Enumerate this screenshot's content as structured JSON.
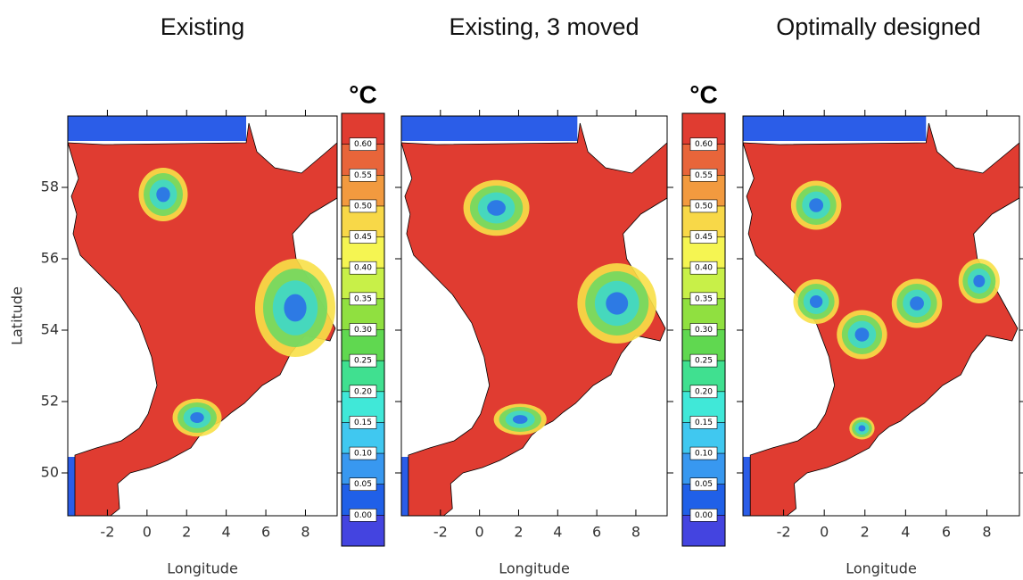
{
  "chart_data": [
    {
      "type": "map",
      "title": "Existing",
      "xlabel": "Longitude",
      "ylabel": "Latitude",
      "xlim": [
        -4,
        9.6
      ],
      "ylim": [
        48.8,
        60
      ],
      "xticks": [
        -2,
        0,
        2,
        4,
        6,
        8
      ],
      "yticks": [
        50,
        52,
        54,
        56,
        58
      ],
      "colorbar": {
        "title": "°C",
        "lim": [
          -0.05,
          0.65
        ],
        "ticks": [
          {
            "value": 0.6,
            "label": "0.60"
          },
          {
            "value": 0.55,
            "label": "0.55"
          },
          {
            "value": 0.5,
            "label": "0.50"
          },
          {
            "value": 0.45,
            "label": "0.45"
          },
          {
            "value": 0.4,
            "label": "0.40"
          },
          {
            "value": 0.35,
            "label": "0.35"
          },
          {
            "value": 0.3,
            "label": "0.30"
          },
          {
            "value": 0.25,
            "label": "0.25"
          },
          {
            "value": 0.2,
            "label": "0.20"
          },
          {
            "value": 0.15,
            "label": "0.15"
          },
          {
            "value": 0.1,
            "label": "0.10"
          },
          {
            "value": 0.05,
            "label": "0.05"
          },
          {
            "value": 0,
            "label": "0.00"
          }
        ],
        "colors": [
          "#e03c31",
          "#e8653a",
          "#f29a3f",
          "#f8d848",
          "#f5f552",
          "#c8f048",
          "#90e040",
          "#60d850",
          "#40e090",
          "#40e8d8",
          "#40c8f0",
          "#3898f0",
          "#2060e8",
          "#4444e0"
        ]
      }
    },
    {
      "type": "map",
      "title": "Existing, 3 moved",
      "xlabel": "Longitude",
      "xlim": [
        -4,
        9.6
      ],
      "ylim": [
        48.8,
        60
      ],
      "xticks": [
        -2,
        0,
        2,
        4,
        6,
        8
      ],
      "yticks": [
        50,
        52,
        54,
        56,
        58
      ],
      "colorbar": {
        "title": "°C",
        "lim": [
          -0.05,
          0.65
        ],
        "ticks": [
          {
            "value": 0.6,
            "label": "0.60"
          },
          {
            "value": 0.55,
            "label": "0.55"
          },
          {
            "value": 0.5,
            "label": "0.50"
          },
          {
            "value": 0.45,
            "label": "0.45"
          },
          {
            "value": 0.4,
            "label": "0.40"
          },
          {
            "value": 0.35,
            "label": "0.35"
          },
          {
            "value": 0.3,
            "label": "0.30"
          },
          {
            "value": 0.25,
            "label": "0.25"
          },
          {
            "value": 0.2,
            "label": "0.20"
          },
          {
            "value": 0.15,
            "label": "0.15"
          },
          {
            "value": 0.1,
            "label": "0.10"
          },
          {
            "value": 0.05,
            "label": "0.05"
          },
          {
            "value": 0,
            "label": "0.00"
          }
        ],
        "colors": [
          "#e03c31",
          "#e8653a",
          "#f29a3f",
          "#f8d848",
          "#f5f552",
          "#c8f048",
          "#90e040",
          "#60d850",
          "#40e090",
          "#40e8d8",
          "#40c8f0",
          "#3898f0",
          "#2060e8",
          "#4444e0"
        ]
      }
    },
    {
      "type": "map",
      "title": "Optimally designed",
      "xlabel": "Longitude",
      "xlim": [
        -4,
        9.6
      ],
      "ylim": [
        48.8,
        60
      ],
      "xticks": [
        -2,
        0,
        2,
        4,
        6,
        8
      ],
      "yticks": [
        50,
        52,
        54,
        56,
        58
      ]
    }
  ]
}
